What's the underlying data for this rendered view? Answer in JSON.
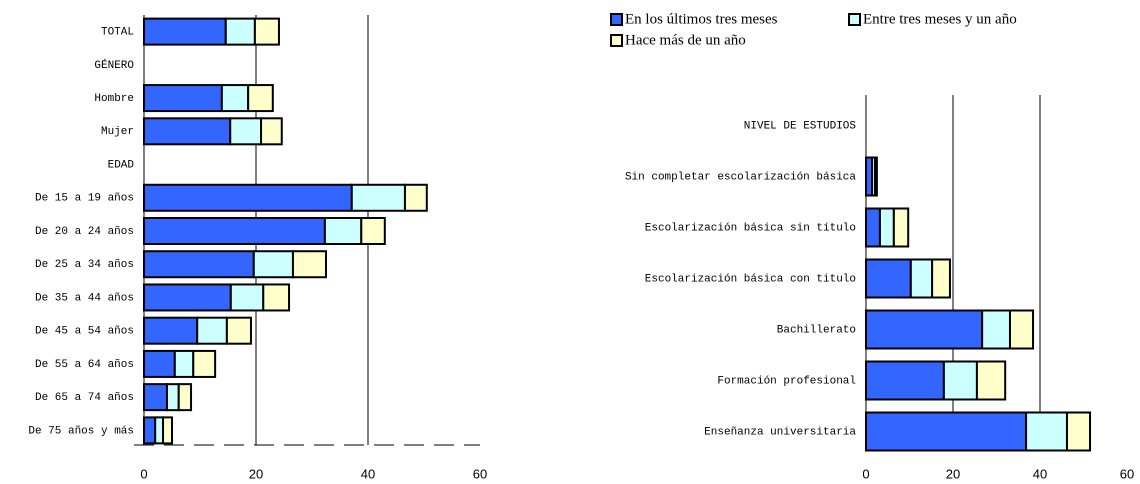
{
  "chart_data": [
    {
      "type": "stacked-bar-horizontal",
      "categories": [
        "TOTAL",
        "GÉNERO",
        "Hombre",
        "Mujer",
        "EDAD",
        "De 15 a  19  años",
        "De 20 a 24 años",
        "De 25 a 34 años",
        "De 35 a 44 años",
        "De 45 a 54 años",
        "De 55 a 64 años",
        "De 65 a 74 años",
        "De 75 años y más"
      ],
      "series": [
        {
          "color": "#3366ff",
          "values": [
            14.6,
            null,
            13.9,
            15.4,
            null,
            37.1,
            32.3,
            19.6,
            15.5,
            9.5,
            5.5,
            4.1,
            2.0
          ]
        },
        {
          "color": "#ccffff",
          "values": [
            5.2,
            null,
            4.7,
            5.5,
            null,
            9.5,
            6.5,
            7.0,
            5.8,
            5.3,
            3.3,
            2.1,
            1.4
          ]
        },
        {
          "color": "#ffffcc",
          "values": [
            4.3,
            null,
            4.4,
            3.7,
            null,
            3.9,
            4.2,
            5.9,
            4.6,
            4.3,
            3.9,
            2.2,
            1.6
          ]
        }
      ],
      "xlim": [
        0,
        60
      ],
      "xticks": [
        0,
        20,
        40,
        60
      ],
      "grid": true
    },
    {
      "type": "stacked-bar-horizontal",
      "categories": [
        "NIVEL DE ESTUDIOS",
        "Sin completar escolarización básica",
        "Escolarización básica sin título",
        "Escolarización básica con titulo",
        "Bachillerato",
        "Formación profesional",
        "Enseñanza universitaria"
      ],
      "series": [
        {
          "name": "En los últimos tres meses",
          "color": "#3366ff",
          "values": [
            null,
            1.4,
            3.2,
            10.3,
            26.7,
            17.9,
            36.8
          ]
        },
        {
          "name": "Entre tres meses y un año",
          "color": "#ccffff",
          "values": [
            null,
            0.7,
            3.2,
            4.9,
            6.4,
            7.6,
            9.4
          ]
        },
        {
          "name": "Hace más de un año",
          "color": "#ffffcc",
          "values": [
            null,
            0.4,
            3.3,
            4.1,
            5.3,
            6.5,
            5.3
          ]
        }
      ],
      "xlim": [
        0,
        60
      ],
      "xticks": [
        0,
        20,
        40,
        60
      ],
      "grid": true
    }
  ]
}
